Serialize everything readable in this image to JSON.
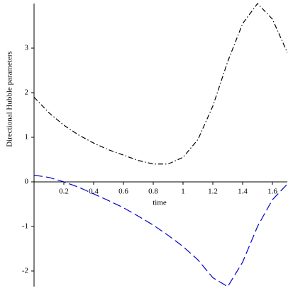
{
  "chart_data": {
    "type": "line",
    "x_label": "time",
    "y_label": "Directional Hubble parameters",
    "x": [
      0,
      0.1,
      0.2,
      0.3,
      0.4,
      0.5,
      0.6,
      0.7,
      0.8,
      0.9,
      1.0,
      1.1,
      1.2,
      1.3,
      1.4,
      1.5,
      1.6,
      1.7
    ],
    "series": [
      {
        "color": "#000000",
        "dash": "7 3 1.5 3",
        "values": [
          1.9,
          1.55,
          1.27,
          1.05,
          0.87,
          0.72,
          0.6,
          0.48,
          0.4,
          0.4,
          0.55,
          0.95,
          1.7,
          2.7,
          3.55,
          4.0,
          3.65,
          2.9
        ]
      },
      {
        "color": "#0000cc",
        "dash": "12 5",
        "values": [
          0.15,
          0.1,
          0,
          -0.12,
          -0.27,
          -0.42,
          -0.58,
          -0.77,
          -0.97,
          -1.2,
          -1.45,
          -1.75,
          -2.15,
          -2.35,
          -1.8,
          -1.0,
          -0.4,
          -0.05
        ]
      }
    ],
    "xlim": [
      0,
      1.7
    ],
    "ylim": [
      -2.35,
      4.0
    ],
    "xticks": [
      0.2,
      0.4,
      0.6,
      0.8,
      1,
      1.2,
      1.4,
      1.6
    ],
    "yticks": [
      -2,
      -1,
      0,
      1,
      2,
      3
    ],
    "grid": false
  }
}
